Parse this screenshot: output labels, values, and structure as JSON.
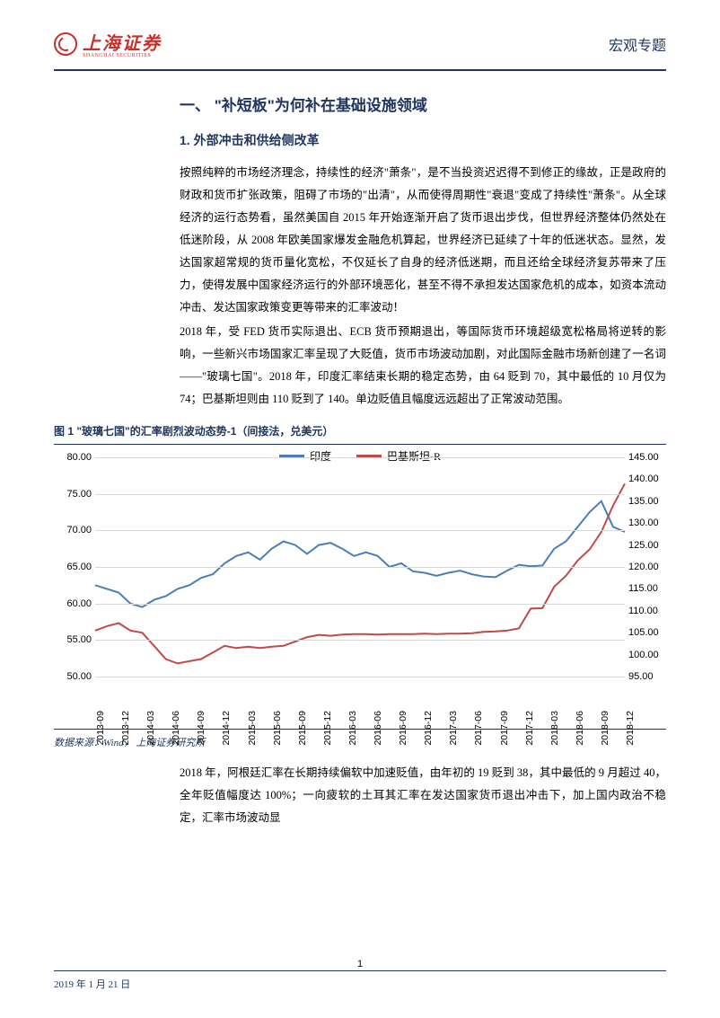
{
  "header": {
    "logo_main": "上海证券",
    "logo_sub": "SHANGHAI SECURITIES",
    "right": "宏观专题"
  },
  "section": {
    "h1": "一、 \"补短板\"为何补在基础设施领域",
    "h2": "1. 外部冲击和供给侧改革",
    "p1": "按照纯粹的市场经济理念，持续性的经济\"萧条\"，是不当投资迟迟得不到修正的缘故，正是政府的财政和货币扩张政策，阻碍了市场的\"出清\"，从而使得周期性\"衰退\"变成了持续性\"萧条\"。从全球经济的运行态势看，虽然美国自 2015 年开始逐渐开启了货币退出步伐，但世界经济整体仍然处在低迷阶段，从 2008 年欧美国家爆发金融危机算起，世界经济已延续了十年的低迷状态。显然，发达国家超常规的货币量化宽松，不仅延长了自身的经济低迷期，而且还给全球经济复苏带来了压力，使得发展中国家经济运行的外部环境恶化，甚至不得不承担发达国家危机的成本，如资本流动冲击、发达国家政策变更等带来的汇率波动！",
    "p2": "2018 年，受 FED 货币实际退出、ECB 货币预期退出，等国际货币环境超级宽松格局将逆转的影响，一些新兴市场国家汇率呈现了大贬值，货币市场波动加剧，对此国际金融市场新创建了一名词——\"玻璃七国\"。2018 年，印度汇率结束长期的稳定态势，由 64 贬到 70，其中最低的 10 月仅为 74；巴基斯坦则由 110 贬到了 140。单边贬值且幅度远远超出了正常波动范围。",
    "p3": "2018 年，阿根廷汇率在长期持续偏软中加速贬值，由年初的 19 贬到 38，其中最低的 9 月超过 40，全年贬值幅度达 100%；一向疲软的土耳其汇率在发达国家货币退出冲击下，加上国内政治不稳定，汇率市场波动显"
  },
  "chart": {
    "title": "图 1 \"玻璃七国\"的汇率剧烈波动态势-1（间接法，兑美元）",
    "source": "数据来源：Wind，  上海证券研究所",
    "legend": {
      "s1": "印度",
      "s2": "巴基斯坦-R"
    },
    "colors": {
      "series1": "#4a7ebb",
      "series2": "#be4b48",
      "grid": "#d9d9d9",
      "axis_text": "#000000"
    },
    "y_left": {
      "min": 50,
      "max": 80,
      "step": 5,
      "labels": [
        "50.00",
        "55.00",
        "60.00",
        "65.00",
        "70.00",
        "75.00",
        "80.00"
      ]
    },
    "y_right": {
      "min": 95,
      "max": 145,
      "step": 5,
      "labels": [
        "95.00",
        "100.00",
        "105.00",
        "110.00",
        "115.00",
        "120.00",
        "125.00",
        "130.00",
        "135.00",
        "140.00",
        "145.00"
      ]
    },
    "x_labels": [
      "2013-09",
      "2013-12",
      "2014-03",
      "2014-06",
      "2014-09",
      "2014-12",
      "2015-03",
      "2015-06",
      "2015-09",
      "2015-12",
      "2016-03",
      "2016-06",
      "2016-09",
      "2016-12",
      "2017-03",
      "2017-06",
      "2017-09",
      "2017-12",
      "2018-03",
      "2018-06",
      "2018-09",
      "2018-12"
    ],
    "series1_values": [
      62.5,
      62.0,
      61.5,
      60.0,
      59.5,
      60.5,
      61.0,
      62.0,
      62.5,
      63.5,
      64.0,
      65.5,
      66.5,
      67.0,
      66.0,
      67.5,
      68.5,
      68.0,
      66.8,
      68.0,
      68.3,
      67.5,
      66.5,
      67.0,
      66.5,
      65.0,
      65.5,
      64.4,
      64.2,
      63.8,
      64.2,
      64.5,
      64.0,
      63.7,
      63.6,
      64.5,
      65.3,
      65.1,
      65.2,
      67.5,
      68.5,
      70.5,
      72.5,
      74.0,
      70.5,
      69.8
    ],
    "series2_values": [
      105.5,
      106.5,
      107.2,
      105.5,
      105.0,
      102.0,
      99.0,
      98.0,
      98.5,
      99.0,
      100.5,
      102.0,
      101.5,
      101.8,
      101.5,
      101.8,
      102.0,
      103.0,
      104.0,
      104.5,
      104.3,
      104.6,
      104.7,
      104.7,
      104.6,
      104.7,
      104.7,
      104.7,
      104.8,
      104.7,
      104.8,
      104.8,
      104.9,
      105.2,
      105.3,
      105.5,
      106.0,
      110.5,
      110.6,
      115.5,
      118.0,
      121.5,
      124.0,
      128.0,
      134.0,
      139.0
    ],
    "line_width": 2
  },
  "footer": {
    "date": "2019 年 1 月 21 日",
    "page": "1"
  }
}
